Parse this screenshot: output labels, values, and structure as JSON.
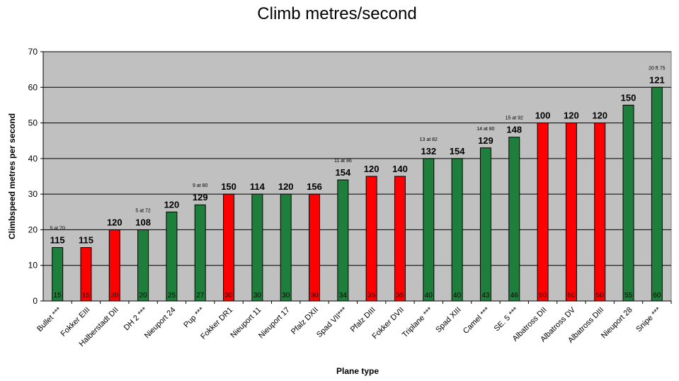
{
  "chart_data": {
    "type": "bar",
    "title": "Climb metres/second",
    "xlabel": "Plane type",
    "ylabel": "Climbspeed metres per second",
    "ylim": [
      0,
      70
    ],
    "yticks": [
      0,
      10,
      20,
      30,
      40,
      50,
      60,
      70
    ],
    "grid": true,
    "legend": "none",
    "colors": {
      "green": "#1e7f3c",
      "red": "#ff0000",
      "plot_bg": "#c0c0c0"
    },
    "categories": [
      "Bullet ***",
      "Fokker EIII",
      "Halberstadt DII",
      "DH 2 ***",
      "Nieuport 24",
      "Pup ***",
      "Fokker DR1",
      "Nieuport 11",
      "Nieuport 17",
      "Pfalz DXII",
      "Spad VII***",
      "Pfalz DIII",
      "Fokker DVII",
      "Triplane ***",
      "Spad XIII",
      "Camel ***",
      "SE. 5 ***",
      "Albatross DII",
      "Albatross DV",
      "Albatross DIII",
      "Nieuport 28",
      "Snipe ***"
    ],
    "values": [
      15,
      15,
      20,
      20,
      25,
      27,
      30,
      30,
      30,
      30,
      34,
      35,
      35,
      40,
      40,
      43,
      46,
      50,
      50,
      50,
      55,
      60
    ],
    "bar_colors": [
      "green",
      "red",
      "red",
      "green",
      "green",
      "green",
      "red",
      "green",
      "green",
      "red",
      "green",
      "red",
      "red",
      "green",
      "green",
      "green",
      "green",
      "red",
      "red",
      "red",
      "green",
      "green"
    ],
    "top_labels": [
      "115",
      "115",
      "120",
      "108",
      "120",
      "129",
      "150",
      "114",
      "120",
      "156",
      "154",
      "120",
      "140",
      "132",
      "154",
      "129",
      "148",
      "100",
      "120",
      "120",
      "150",
      "121"
    ],
    "notes": [
      "5 at 70",
      "",
      "",
      "5 at 72",
      "",
      "9 at 80",
      "",
      "",
      "",
      "",
      "11 at 96",
      "",
      "",
      "13 at 82",
      "",
      "14 at 80",
      "15 at 92",
      "",
      "",
      "",
      "",
      "20 ft 75"
    ],
    "in_bar_labels": [
      "15",
      "15",
      "20",
      "20",
      "25",
      "27",
      "30",
      "30",
      "30",
      "30",
      "34",
      "35",
      "35",
      "40",
      "40",
      "43",
      "46",
      "50",
      "50",
      "50",
      "55",
      "60"
    ]
  }
}
